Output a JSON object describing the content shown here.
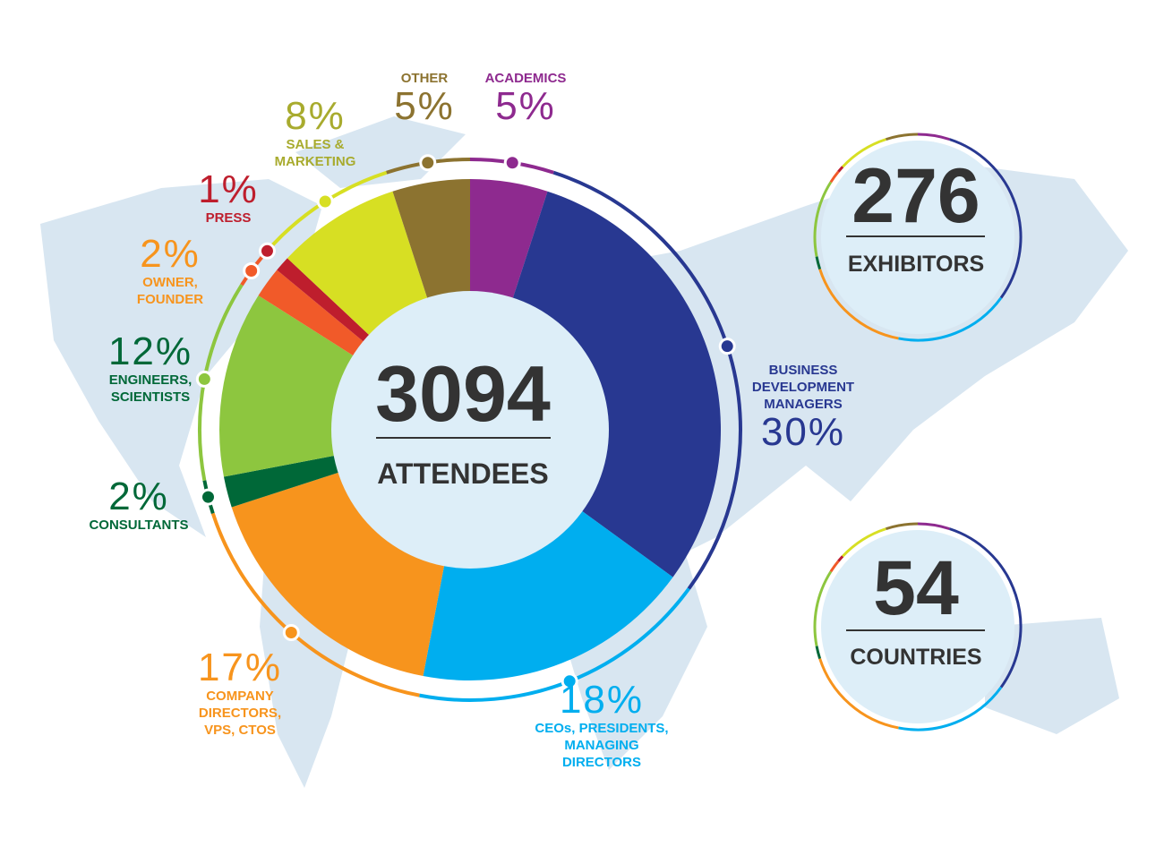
{
  "chart_data": {
    "type": "pie",
    "donut": true,
    "categories": [
      "ACADEMICS",
      "BUSINESS DEVELOPMENT MANAGERS",
      "CEOs, PRESIDENTS, MANAGING DIRECTORS",
      "COMPANY DIRECTORS, VPS, CTOS",
      "CONSULTANTS",
      "ENGINEERS, SCIENTISTS",
      "OWNER, FOUNDER",
      "PRESS",
      "SALES & MARKETING",
      "OTHER"
    ],
    "values": [
      5,
      30,
      18,
      17,
      2,
      12,
      2,
      1,
      8,
      5
    ],
    "value_labels": [
      "5%",
      "30%",
      "18%",
      "17%",
      "2%",
      "12%",
      "2%",
      "1%",
      "8%",
      "5%"
    ],
    "colors": [
      "#8e2a8f",
      "#283891",
      "#00aeef",
      "#f7941d",
      "#006838",
      "#8dc63f",
      "#f15a29",
      "#be1e2d",
      "#d7df23",
      "#8c7330"
    ],
    "label_colors": [
      "#8e2a8f",
      "#283891",
      "#00aeef",
      "#f7941d",
      "#006838",
      "#006838",
      "#f7941d",
      "#be1e2d",
      "#a8ab2e",
      "#8c7330"
    ],
    "center_value": 3094,
    "center_label": "ATTENDEES"
  },
  "stats": [
    {
      "value": 276,
      "label": "EXHIBITORS"
    },
    {
      "value": 54,
      "label": "COUNTRIES"
    }
  ]
}
